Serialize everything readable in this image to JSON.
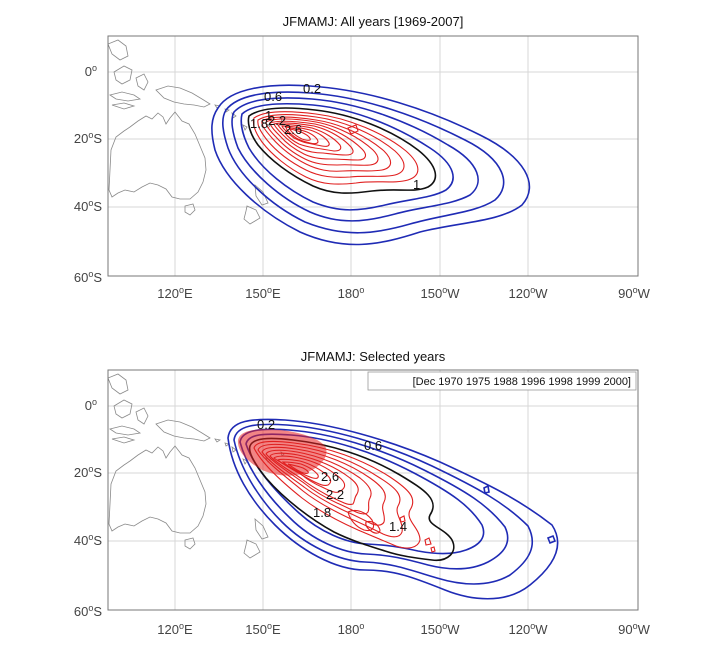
{
  "panels": [
    {
      "title": "JFMAMJ: All years [1969-2007]",
      "subtitle": "",
      "contour_labels": [
        "0.2",
        "0.6",
        "1",
        "1.8",
        "2.2",
        "2.6",
        "1"
      ]
    },
    {
      "title": "JFMAMJ: Selected years",
      "subtitle": "[Dec 1970 1975 1988 1996 1998 1999 2000]",
      "contour_labels": [
        "0.2",
        "0.6",
        "2.6",
        "2.2",
        "1.8",
        "1.4"
      ]
    }
  ],
  "axes": {
    "lat_ticks": [
      "0",
      "20",
      "40",
      "60"
    ],
    "lat_suffix": [
      "",
      "S",
      "S",
      "S"
    ],
    "lon_ticks": [
      "120",
      "150",
      "180",
      "150",
      "120",
      "90"
    ],
    "lon_suffix": [
      "E",
      "E",
      "",
      "W",
      "W",
      "W"
    ],
    "degree_symbol": "o"
  },
  "colors": {
    "outer_contours": "#1f2bb5",
    "mid_contour": "#111111",
    "inner_contours": "#e02020",
    "coastline": "#8a8a8a",
    "grid": "#d7d7d7"
  }
}
